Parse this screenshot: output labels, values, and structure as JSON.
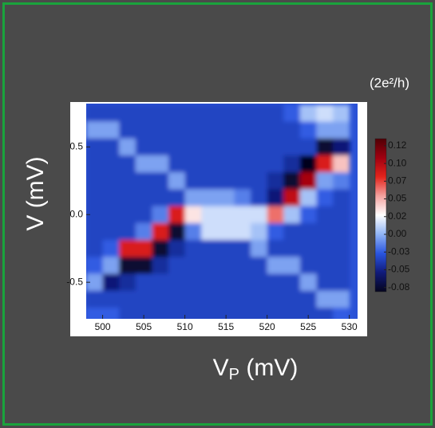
{
  "chart_data": {
    "type": "heatmap",
    "x": [
      499,
      501,
      503,
      505,
      507,
      509,
      511,
      513,
      515,
      517,
      519,
      521,
      523,
      525,
      527,
      529
    ],
    "y": [
      0.75,
      0.625,
      0.5,
      0.375,
      0.25,
      0.125,
      0,
      -0.125,
      -0.25,
      -0.375,
      -0.5,
      -0.625,
      -0.75
    ],
    "z": [
      [
        -0.04,
        -0.04,
        -0.04,
        -0.04,
        -0.04,
        -0.04,
        -0.04,
        -0.04,
        -0.04,
        -0.04,
        -0.04,
        -0.04,
        -0.03,
        0.0,
        0.01,
        0.0
      ],
      [
        -0.01,
        -0.01,
        -0.04,
        -0.04,
        -0.04,
        -0.04,
        -0.04,
        -0.04,
        -0.04,
        -0.04,
        -0.04,
        -0.04,
        -0.04,
        -0.03,
        -0.01,
        -0.01
      ],
      [
        -0.04,
        -0.04,
        -0.01,
        -0.04,
        -0.04,
        -0.04,
        -0.04,
        -0.04,
        -0.04,
        -0.04,
        -0.04,
        -0.04,
        -0.04,
        -0.04,
        -0.08,
        -0.06
      ],
      [
        -0.04,
        -0.04,
        -0.04,
        -0.01,
        -0.01,
        -0.04,
        -0.04,
        -0.04,
        -0.04,
        -0.04,
        -0.04,
        -0.04,
        -0.05,
        -0.09,
        0.08,
        0.04
      ],
      [
        -0.04,
        -0.04,
        -0.04,
        -0.04,
        -0.04,
        -0.01,
        -0.04,
        -0.04,
        -0.04,
        -0.04,
        -0.04,
        -0.05,
        -0.08,
        0.1,
        -0.01,
        -0.02
      ],
      [
        -0.04,
        -0.04,
        -0.04,
        -0.04,
        -0.04,
        -0.04,
        -0.01,
        -0.01,
        -0.01,
        -0.02,
        -0.04,
        -0.06,
        0.09,
        0.0,
        -0.03,
        -0.04
      ],
      [
        -0.04,
        -0.04,
        -0.04,
        -0.04,
        -0.02,
        0.08,
        0.03,
        0.01,
        0.01,
        0.01,
        0.01,
        0.06,
        0.0,
        -0.03,
        -0.04,
        -0.04
      ],
      [
        -0.04,
        -0.04,
        -0.04,
        -0.02,
        0.08,
        -0.08,
        -0.02,
        0.01,
        0.01,
        0.01,
        0.0,
        -0.03,
        -0.04,
        -0.04,
        -0.04,
        -0.04
      ],
      [
        -0.04,
        -0.03,
        0.08,
        0.08,
        -0.08,
        -0.05,
        -0.04,
        -0.04,
        -0.04,
        -0.04,
        -0.01,
        -0.04,
        -0.04,
        -0.04,
        -0.04,
        -0.04
      ],
      [
        -0.03,
        -0.01,
        -0.08,
        -0.08,
        -0.05,
        -0.04,
        -0.04,
        -0.04,
        -0.04,
        -0.04,
        -0.04,
        -0.01,
        -0.01,
        -0.04,
        -0.04,
        -0.04
      ],
      [
        -0.01,
        -0.06,
        -0.05,
        -0.04,
        -0.04,
        -0.04,
        -0.04,
        -0.04,
        -0.04,
        -0.04,
        -0.04,
        -0.04,
        -0.04,
        -0.01,
        -0.04,
        -0.04
      ],
      [
        -0.04,
        -0.04,
        -0.04,
        -0.04,
        -0.04,
        -0.04,
        -0.04,
        -0.04,
        -0.04,
        -0.04,
        -0.04,
        -0.04,
        -0.04,
        -0.04,
        -0.01,
        -0.01
      ],
      [
        -0.03,
        -0.03,
        -0.04,
        -0.04,
        -0.04,
        -0.04,
        -0.04,
        -0.04,
        -0.04,
        -0.04,
        -0.04,
        -0.04,
        -0.04,
        -0.04,
        -0.04,
        -0.03
      ]
    ],
    "xlim": [
      498,
      531
    ],
    "ylim": [
      -0.77,
      0.82
    ],
    "xticks": [
      500,
      505,
      510,
      515,
      520,
      525,
      530
    ],
    "yticks": [
      -0.5,
      {
        "value": 0,
        "label": "0.0"
      },
      0.5
    ],
    "xlabel": {
      "base": "V",
      "subscript": "P",
      "unit": " (mV)"
    },
    "ylabel": "V (mV)",
    "colorbar": {
      "label": "(2e²/h)",
      "zlim": [
        -0.086,
        0.13
      ],
      "ticks": [
        -0.08,
        {
          "value": -0.055,
          "label": "-0.05"
        },
        -0.03,
        {
          "value": -0.005,
          "label": "0.00"
        },
        0.02,
        {
          "value": 0.045,
          "label": "0.05"
        },
        0.07,
        {
          "value": 0.095,
          "label": "0.10"
        },
        0.12
      ],
      "colors": [
        "#05051e",
        "#101a7a",
        "#2a55e0",
        "#90b4f5",
        "#ffffff",
        "#f4a3a0",
        "#e3241c",
        "#a00010",
        "#500005"
      ]
    }
  }
}
